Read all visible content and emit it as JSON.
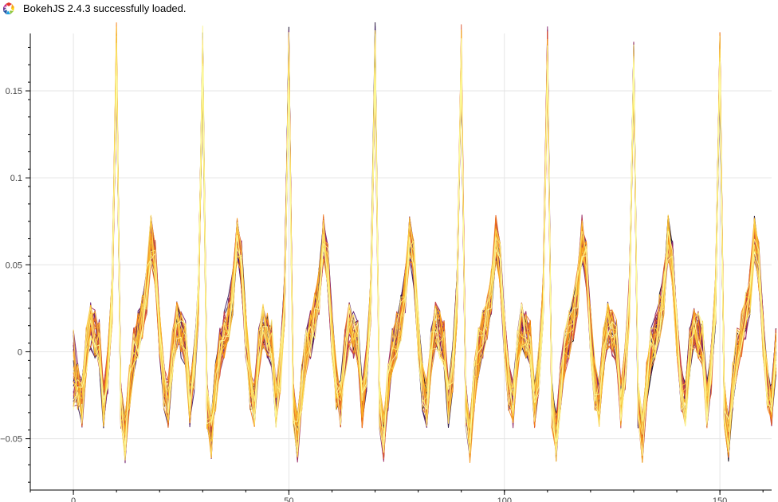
{
  "banner": {
    "text": "BokehJS 2.4.3 successfully loaded.",
    "logo_icon": "bokeh-logo-icon"
  },
  "chart_data": {
    "type": "line",
    "title": "",
    "xlabel": "",
    "ylabel": "",
    "xlim": [
      -10,
      162
    ],
    "ylim": [
      -0.0795,
      0.183
    ],
    "grid": true,
    "x_ticks": [
      0,
      50,
      100,
      150
    ],
    "x_tick_labels": [
      "0",
      "50",
      "100",
      "150"
    ],
    "y_ticks": [
      -0.05,
      0,
      0.05,
      0.1,
      0.15
    ],
    "y_tick_labels": [
      "−0.05",
      "0",
      "0.05",
      "0.1",
      "0.15"
    ],
    "colormap": "Inferno",
    "num_series": 40,
    "period": 20,
    "x_start": 0,
    "x_end": 163,
    "base_profile": {
      "phase": [
        0,
        1,
        2,
        3,
        4,
        5,
        6,
        7,
        8,
        9,
        10,
        11,
        12,
        13,
        14,
        15,
        16,
        17,
        18,
        19
      ],
      "values": [
        0.17,
        -0.03,
        -0.05,
        -0.02,
        0.0,
        0.01,
        0.02,
        0.035,
        0.065,
        0.05,
        0.01,
        -0.02,
        -0.03,
        0.0,
        0.015,
        0.01,
        0.005,
        -0.03,
        -0.01,
        0.03
      ]
    },
    "peak_positions": [
      9,
      29,
      49,
      69,
      89,
      109,
      129,
      149
    ]
  }
}
